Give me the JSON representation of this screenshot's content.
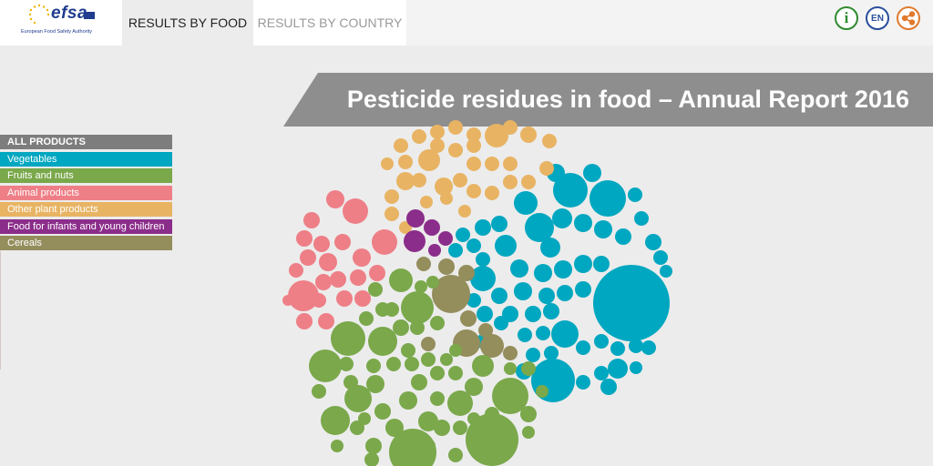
{
  "header": {
    "logo_text": "efsa",
    "logo_subtitle": "European Food Safety Authority",
    "tabs": [
      {
        "label": "RESULTS BY FOOD",
        "active": true
      },
      {
        "label": "RESULTS BY COUNTRY",
        "active": false
      }
    ],
    "info_icon": "info-icon",
    "language": "EN",
    "share_icon": "share-icon",
    "colors": {
      "info": "#2f8a2f",
      "language": "#2a4f9c",
      "share": "#e07a2e"
    }
  },
  "title": "Pesticide residues in food – Annual Report 2016",
  "categories": [
    {
      "label": "ALL PRODUCTS",
      "color": "#7d7d7d"
    },
    {
      "label": "Vegetables",
      "color": "#00a7c0"
    },
    {
      "label": "Fruits and nuts",
      "color": "#7aa84b"
    },
    {
      "label": "Animal products",
      "color": "#ee7f87"
    },
    {
      "label": "Other plant products",
      "color": "#e8b464"
    },
    {
      "label": "Food for infants and young children",
      "color": "#8b2d8a"
    },
    {
      "label": "Cereals",
      "color": "#948d5c"
    }
  ]
}
